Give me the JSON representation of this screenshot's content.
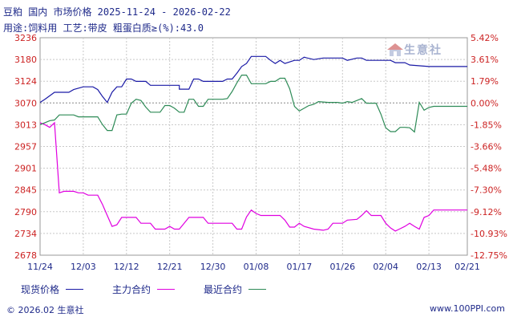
{
  "header": {
    "title": "豆粕 国内 市场价格 2025-11-24 - 2026-02-22",
    "subtitle": "用途:饲料用 工艺:带皮 粗蛋白质≥(%):43.0"
  },
  "watermark": {
    "text": "生意社",
    "icon": "house-logo-icon"
  },
  "legend": [
    {
      "label": "现货价格",
      "color": "#1a1aa6"
    },
    {
      "label": "主力合约",
      "color": "#e000e0"
    },
    {
      "label": "最近合约",
      "color": "#2e8b57"
    }
  ],
  "footer": {
    "left": "© 2026.02 生意社",
    "right": "www.100PPI.com"
  },
  "colors": {
    "left_axis": "#cc2222",
    "right_axis": "#cc2222",
    "grid": "#c8c8c8",
    "zero_line": "#888888"
  },
  "chart_data": {
    "type": "line",
    "xlim": [
      0,
      89
    ],
    "x_ticks": [
      {
        "x": 0,
        "label": "11/24"
      },
      {
        "x": 9,
        "label": "12/03"
      },
      {
        "x": 18,
        "label": "12/12"
      },
      {
        "x": 27,
        "label": "12/21"
      },
      {
        "x": 36,
        "label": "12/30"
      },
      {
        "x": 45,
        "label": "01/08"
      },
      {
        "x": 54,
        "label": "01/17"
      },
      {
        "x": 63,
        "label": "01/26"
      },
      {
        "x": 72,
        "label": "02/04"
      },
      {
        "x": 81,
        "label": "02/13"
      },
      {
        "x": 89,
        "label": "02/21"
      }
    ],
    "y_left": {
      "min": 2678,
      "max": 3236,
      "ticks": [
        3236,
        3180,
        3124,
        3070,
        3013,
        2957,
        2901,
        2845,
        2790,
        2734,
        2678
      ]
    },
    "y_right": {
      "min": -12.75,
      "max": 5.42,
      "ticks": [
        "5.42%",
        "3.61%",
        "1.79%",
        "0.00%",
        "-1.85%",
        "-3.66%",
        "-5.48%",
        "-7.30%",
        "-9.12%",
        "-10.93%",
        "-12.75%"
      ]
    },
    "series": [
      {
        "name": "现货价格",
        "color": "#1a1aa6",
        "points": [
          [
            0,
            3070
          ],
          [
            1,
            3078
          ],
          [
            3,
            3096
          ],
          [
            6,
            3096
          ],
          [
            7,
            3103
          ],
          [
            9,
            3110
          ],
          [
            11,
            3110
          ],
          [
            12,
            3103
          ],
          [
            13,
            3085
          ],
          [
            14,
            3070
          ],
          [
            15,
            3096
          ],
          [
            16,
            3110
          ],
          [
            17,
            3110
          ],
          [
            18,
            3130
          ],
          [
            19,
            3130
          ],
          [
            20,
            3124
          ],
          [
            22,
            3124
          ],
          [
            23,
            3114
          ],
          [
            29,
            3114
          ],
          [
            29,
            3104
          ],
          [
            31,
            3104
          ],
          [
            32,
            3130
          ],
          [
            33,
            3130
          ],
          [
            34,
            3124
          ],
          [
            36,
            3124
          ],
          [
            38,
            3124
          ],
          [
            39,
            3130
          ],
          [
            40,
            3130
          ],
          [
            41,
            3145
          ],
          [
            42,
            3162
          ],
          [
            43,
            3170
          ],
          [
            44,
            3188
          ],
          [
            47,
            3188
          ],
          [
            48,
            3178
          ],
          [
            49,
            3170
          ],
          [
            50,
            3178
          ],
          [
            51,
            3170
          ],
          [
            53,
            3178
          ],
          [
            54,
            3178
          ],
          [
            55,
            3186
          ],
          [
            57,
            3180
          ],
          [
            59,
            3184
          ],
          [
            63,
            3184
          ],
          [
            64,
            3178
          ],
          [
            66,
            3184
          ],
          [
            67,
            3184
          ],
          [
            68,
            3178
          ],
          [
            73,
            3178
          ],
          [
            74,
            3172
          ],
          [
            76,
            3172
          ],
          [
            77,
            3166
          ],
          [
            81,
            3162
          ],
          [
            84,
            3162
          ],
          [
            89,
            3162
          ]
        ]
      },
      {
        "name": "主力合约",
        "color": "#e000e0",
        "points": [
          [
            0,
            3018
          ],
          [
            1,
            3013
          ],
          [
            2,
            3006
          ],
          [
            3,
            3018
          ],
          [
            4,
            2838
          ],
          [
            5,
            2842
          ],
          [
            7,
            2842
          ],
          [
            8,
            2838
          ],
          [
            9,
            2838
          ],
          [
            10,
            2832
          ],
          [
            12,
            2832
          ],
          [
            13,
            2808
          ],
          [
            14,
            2780
          ],
          [
            15,
            2752
          ],
          [
            16,
            2756
          ],
          [
            17,
            2775
          ],
          [
            20,
            2775
          ],
          [
            21,
            2760
          ],
          [
            23,
            2760
          ],
          [
            24,
            2745
          ],
          [
            26,
            2745
          ],
          [
            27,
            2752
          ],
          [
            28,
            2745
          ],
          [
            29,
            2745
          ],
          [
            30,
            2760
          ],
          [
            31,
            2775
          ],
          [
            34,
            2775
          ],
          [
            35,
            2760
          ],
          [
            40,
            2760
          ],
          [
            41,
            2745
          ],
          [
            42,
            2745
          ],
          [
            43,
            2776
          ],
          [
            44,
            2794
          ],
          [
            45,
            2785
          ],
          [
            46,
            2780
          ],
          [
            50,
            2780
          ],
          [
            51,
            2768
          ],
          [
            52,
            2750
          ],
          [
            53,
            2750
          ],
          [
            54,
            2760
          ],
          [
            55,
            2752
          ],
          [
            57,
            2745
          ],
          [
            59,
            2742
          ],
          [
            60,
            2745
          ],
          [
            61,
            2760
          ],
          [
            63,
            2760
          ],
          [
            64,
            2768
          ],
          [
            66,
            2770
          ],
          [
            67,
            2780
          ],
          [
            68,
            2792
          ],
          [
            69,
            2780
          ],
          [
            71,
            2780
          ],
          [
            72,
            2760
          ],
          [
            73,
            2748
          ],
          [
            74,
            2740
          ],
          [
            75,
            2746
          ],
          [
            76,
            2752
          ],
          [
            77,
            2760
          ],
          [
            78,
            2752
          ],
          [
            79,
            2745
          ],
          [
            80,
            2775
          ],
          [
            81,
            2780
          ],
          [
            82,
            2794
          ],
          [
            84,
            2794
          ],
          [
            89,
            2794
          ]
        ]
      },
      {
        "name": "最近合约",
        "color": "#2e8b57",
        "points": [
          [
            0,
            3013
          ],
          [
            1,
            3018
          ],
          [
            2,
            3023
          ],
          [
            3,
            3025
          ],
          [
            4,
            3038
          ],
          [
            7,
            3038
          ],
          [
            8,
            3033
          ],
          [
            12,
            3033
          ],
          [
            13,
            3013
          ],
          [
            14,
            2998
          ],
          [
            15,
            2998
          ],
          [
            16,
            3038
          ],
          [
            17,
            3040
          ],
          [
            18,
            3040
          ],
          [
            19,
            3068
          ],
          [
            20,
            3078
          ],
          [
            21,
            3075
          ],
          [
            22,
            3058
          ],
          [
            23,
            3045
          ],
          [
            25,
            3045
          ],
          [
            26,
            3062
          ],
          [
            27,
            3062
          ],
          [
            28,
            3055
          ],
          [
            29,
            3045
          ],
          [
            30,
            3045
          ],
          [
            31,
            3078
          ],
          [
            32,
            3078
          ],
          [
            33,
            3060
          ],
          [
            34,
            3060
          ],
          [
            35,
            3078
          ],
          [
            38,
            3078
          ],
          [
            39,
            3080
          ],
          [
            40,
            3098
          ],
          [
            41,
            3120
          ],
          [
            42,
            3140
          ],
          [
            43,
            3140
          ],
          [
            44,
            3118
          ],
          [
            47,
            3118
          ],
          [
            48,
            3124
          ],
          [
            49,
            3124
          ],
          [
            50,
            3132
          ],
          [
            51,
            3132
          ],
          [
            52,
            3105
          ],
          [
            53,
            3060
          ],
          [
            54,
            3048
          ],
          [
            55,
            3055
          ],
          [
            56,
            3062
          ],
          [
            57,
            3065
          ],
          [
            58,
            3072
          ],
          [
            60,
            3070
          ],
          [
            62,
            3070
          ],
          [
            63,
            3068
          ],
          [
            64,
            3072
          ],
          [
            65,
            3070
          ],
          [
            66,
            3075
          ],
          [
            67,
            3080
          ],
          [
            68,
            3068
          ],
          [
            70,
            3068
          ],
          [
            71,
            3040
          ],
          [
            72,
            3005
          ],
          [
            73,
            2995
          ],
          [
            74,
            2995
          ],
          [
            75,
            3006
          ],
          [
            76,
            3006
          ],
          [
            77,
            3005
          ],
          [
            78,
            2994
          ],
          [
            79,
            3070
          ],
          [
            80,
            3050
          ],
          [
            81,
            3057
          ],
          [
            82,
            3060
          ],
          [
            84,
            3060
          ],
          [
            89,
            3060
          ]
        ]
      }
    ]
  }
}
